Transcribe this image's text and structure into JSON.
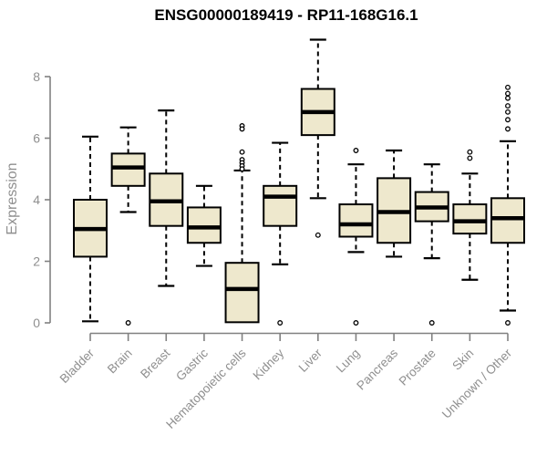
{
  "chart_data": {
    "type": "boxplot",
    "title": "ENSG00000189419 - RP11-168G16.1",
    "ylabel": "Expression",
    "xlabel": "",
    "yticks": [
      0,
      2,
      4,
      6,
      8
    ],
    "ylim": [
      0,
      9.4
    ],
    "grid": false,
    "legend": false,
    "colors": {
      "box_fill": "#EEE8CD",
      "box_stroke": "#000000",
      "median": "#000000",
      "axis_line": "#808080",
      "tick_text": "#8f8f8f",
      "title_text": "#000000",
      "outlier_fill": "#ffffff"
    },
    "categories": [
      "Bladder",
      "Brain",
      "Breast",
      "Gastric",
      "Hematopoietic cells",
      "Kidney",
      "Liver",
      "Lung",
      "Pancreas",
      "Prostate",
      "Skin",
      "Unknown / Other"
    ],
    "boxes": [
      {
        "category": "Bladder",
        "whisker_low": 0.05,
        "q1": 2.15,
        "median": 3.05,
        "q3": 4.0,
        "whisker_high": 6.05,
        "outliers": []
      },
      {
        "category": "Brain",
        "whisker_low": 3.6,
        "q1": 4.45,
        "median": 5.05,
        "q3": 5.5,
        "whisker_high": 6.35,
        "outliers": [
          0.0
        ]
      },
      {
        "category": "Breast",
        "whisker_low": 1.2,
        "q1": 3.15,
        "median": 3.95,
        "q3": 4.85,
        "whisker_high": 6.9,
        "outliers": []
      },
      {
        "category": "Gastric",
        "whisker_low": 1.85,
        "q1": 2.6,
        "median": 3.1,
        "q3": 3.75,
        "whisker_high": 4.45,
        "outliers": []
      },
      {
        "category": "Hematopoietic cells",
        "whisker_low": 0.02,
        "q1": 0.02,
        "median": 1.1,
        "q3": 1.95,
        "whisker_high": 4.95,
        "outliers": [
          6.4,
          6.3,
          5.55,
          5.3,
          5.2,
          5.1,
          5.0
        ]
      },
      {
        "category": "Kidney",
        "whisker_low": 1.9,
        "q1": 3.15,
        "median": 4.1,
        "q3": 4.45,
        "whisker_high": 5.85,
        "outliers": [
          0.0
        ]
      },
      {
        "category": "Liver",
        "whisker_low": 4.05,
        "q1": 6.1,
        "median": 6.85,
        "q3": 7.6,
        "whisker_high": 9.2,
        "outliers": [
          2.85
        ]
      },
      {
        "category": "Lung",
        "whisker_low": 2.3,
        "q1": 2.8,
        "median": 3.2,
        "q3": 3.85,
        "whisker_high": 5.15,
        "outliers": [
          5.6,
          0.0
        ]
      },
      {
        "category": "Pancreas",
        "whisker_low": 2.15,
        "q1": 2.6,
        "median": 3.6,
        "q3": 4.7,
        "whisker_high": 5.6,
        "outliers": []
      },
      {
        "category": "Prostate",
        "whisker_low": 2.1,
        "q1": 3.3,
        "median": 3.75,
        "q3": 4.25,
        "whisker_high": 5.15,
        "outliers": [
          0.0
        ]
      },
      {
        "category": "Skin",
        "whisker_low": 1.4,
        "q1": 2.9,
        "median": 3.3,
        "q3": 3.85,
        "whisker_high": 4.85,
        "outliers": [
          5.55,
          5.35
        ]
      },
      {
        "category": "Unknown / Other",
        "whisker_low": 0.4,
        "q1": 2.6,
        "median": 3.4,
        "q3": 4.05,
        "whisker_high": 5.9,
        "outliers": [
          7.65,
          7.45,
          7.3,
          7.05,
          6.85,
          6.6,
          6.3,
          0.0
        ]
      }
    ]
  }
}
